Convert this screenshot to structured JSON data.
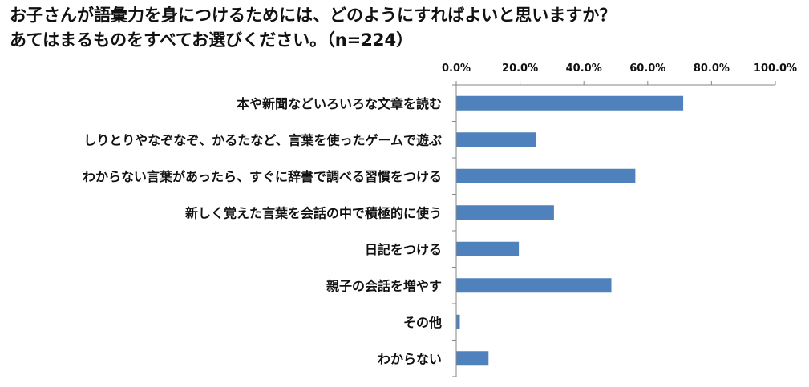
{
  "chart_data": {
    "type": "bar",
    "orientation": "horizontal",
    "title": [
      "お子さんが語彙力を身につけるためには、どのようにすればよいと思いますか？",
      "あてはまるものをすべてお選びください。（n=224）"
    ],
    "categories": [
      "本や新聞などいろいろな文章を読む",
      "しりとりやなぞなぞ、かるたなど、言葉を使ったゲームで遊ぶ",
      "わからない言葉があったら、すぐに辞書で調べる習慣をつける",
      "新しく覚えた言葉を会話の中で積極的に使う",
      "日記をつける",
      "親子の会話を増やす",
      "その他",
      "わからない"
    ],
    "values": [
      71.0,
      25.0,
      56.0,
      30.5,
      19.5,
      48.5,
      1.0,
      10.0
    ],
    "x_ticks": [
      "0.0%",
      "20.0%",
      "40.0%",
      "60.0%",
      "80.0%",
      "100.0%"
    ],
    "xlim": [
      0,
      100
    ],
    "axis_position": "top",
    "bar_color": "#4f81bd",
    "grid": false,
    "legend": "none"
  }
}
